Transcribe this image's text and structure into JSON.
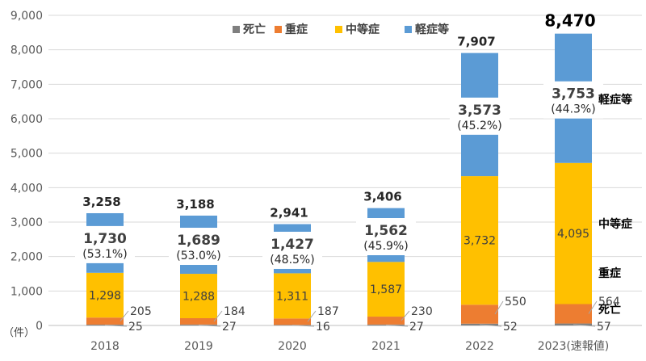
{
  "chart_data": {
    "type": "bar",
    "stacked": true,
    "categories": [
      "2018",
      "2019",
      "2020",
      "2021",
      "2022",
      "2023(速報値)"
    ],
    "unit_label": "（件）",
    "ylim": [
      0,
      9000
    ],
    "yticks": [
      "0",
      "1,000",
      "2,000",
      "3,000",
      "4,000",
      "5,000",
      "6,000",
      "7,000",
      "8,000",
      "9,000"
    ],
    "legend_position": "top",
    "series": [
      {
        "name": "死亡",
        "color": "#7f7f7f",
        "values": [
          25,
          27,
          16,
          27,
          52,
          57
        ],
        "labels": [
          "25",
          "27",
          "16",
          "27",
          "52",
          "57"
        ]
      },
      {
        "name": "重症",
        "color": "#ed7d31",
        "values": [
          205,
          184,
          187,
          230,
          550,
          564
        ],
        "labels": [
          "205",
          "184",
          "187",
          "230",
          "550",
          "564"
        ]
      },
      {
        "name": "中等症",
        "color": "#ffc000",
        "values": [
          1298,
          1288,
          1311,
          1587,
          3732,
          4095
        ],
        "labels": [
          "1,298",
          "1,288",
          "1,311",
          "1,587",
          "3,732",
          "4,095"
        ]
      },
      {
        "name": "軽症等",
        "color": "#5b9bd5",
        "values": [
          1730,
          1689,
          1427,
          1562,
          3573,
          3753
        ],
        "labels": [
          "1,730",
          "1,689",
          "1,427",
          "1,562",
          "3,573",
          "3,753"
        ],
        "shares": [
          "(53.1%)",
          "(53.0%)",
          "(48.5%)",
          "(45.9%)",
          "(45.2%)",
          "(44.3%)"
        ]
      }
    ],
    "totals": [
      3258,
      3188,
      2941,
      3406,
      7907,
      8470
    ],
    "total_labels": [
      "3,258",
      "3,188",
      "2,941",
      "3,406",
      "7,907",
      "8,470"
    ],
    "side_labels": [
      "軽症等",
      "中等症",
      "重症",
      "死亡"
    ]
  }
}
